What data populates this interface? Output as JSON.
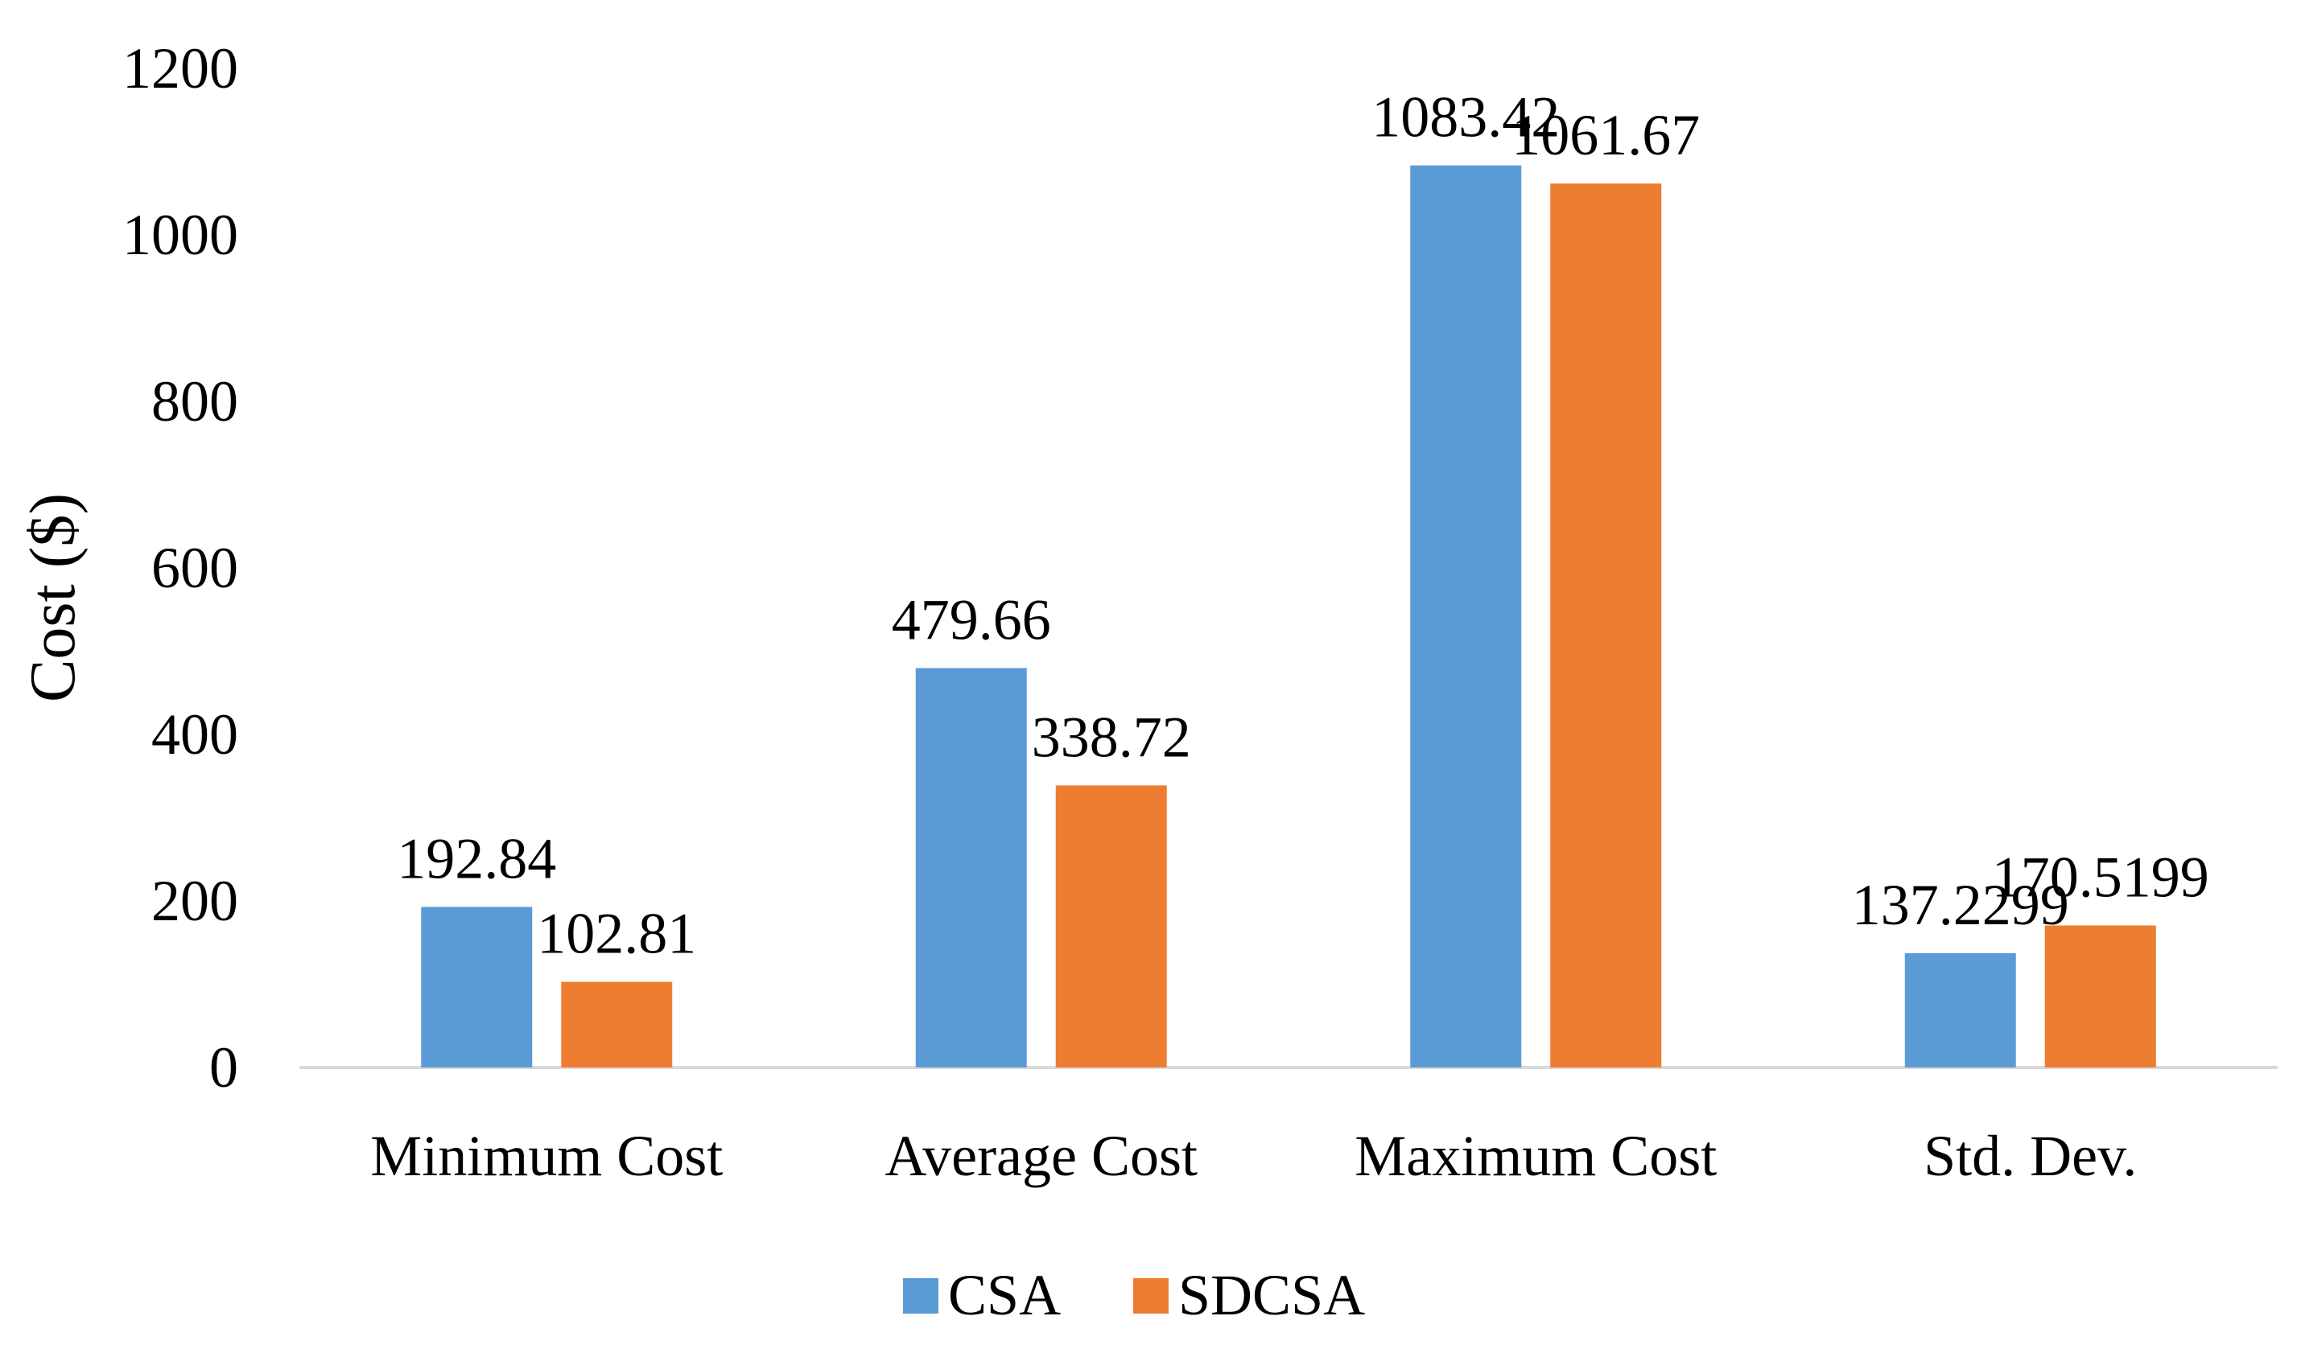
{
  "chart_data": {
    "type": "bar",
    "title": "",
    "xlabel": "",
    "ylabel": "Cost ($)",
    "ylim": [
      0,
      1200
    ],
    "yticks": [
      "0",
      "200",
      "400",
      "600",
      "800",
      "1000",
      "1200"
    ],
    "grid": false,
    "legend_position": "bottom",
    "categories": [
      "Minimum Cost",
      "Average Cost",
      "Maximum Cost",
      "Std. Dev."
    ],
    "series": [
      {
        "name": "CSA",
        "color": "#5B9BD5",
        "values": [
          192.84,
          479.66,
          1083.42,
          137.2299
        ],
        "labels": [
          "192.84",
          "479.66",
          "1083.42",
          "137.2299"
        ]
      },
      {
        "name": "SDCSA",
        "color": "#ED7D31",
        "values": [
          102.81,
          338.72,
          1061.67,
          170.5199
        ],
        "labels": [
          "102.81",
          "338.72",
          "1061.67",
          "170.5199"
        ]
      }
    ]
  }
}
